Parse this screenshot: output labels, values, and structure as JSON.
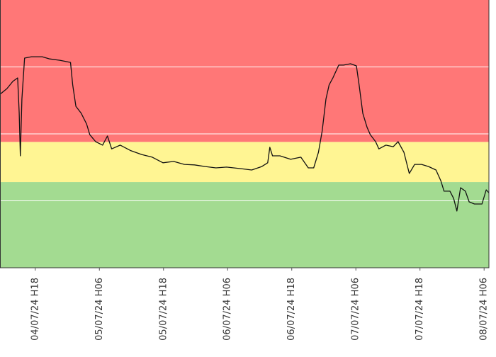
{
  "chart_data": {
    "type": "line",
    "xlim": [
      11.4,
      102.9
    ],
    "ylim": [
      0,
      100
    ],
    "xticks": [
      {
        "value": 18,
        "label": "04/07/24 H18"
      },
      {
        "value": 30,
        "label": "05/07/24 H06"
      },
      {
        "value": 42,
        "label": "05/07/24 H18"
      },
      {
        "value": 54,
        "label": "06/07/24 H06"
      },
      {
        "value": 66,
        "label": "06/07/24 H18"
      },
      {
        "value": 78,
        "label": "07/07/24 H06"
      },
      {
        "value": 90,
        "label": "07/07/24 H18"
      },
      {
        "value": 102,
        "label": "08/07/24 H06"
      }
    ],
    "gridlines": [
      25,
      50,
      75
    ],
    "bands": [
      {
        "from": 0,
        "to": 32,
        "color": "#a3db91"
      },
      {
        "from": 32,
        "to": 47,
        "color": "#fff593"
      },
      {
        "from": 47,
        "to": 100,
        "color": "#ff7777"
      }
    ],
    "series": [
      {
        "color": "#111111",
        "x": [
          11.4,
          12.7,
          13.8,
          14.7,
          15.0,
          15.2,
          15.5,
          16.0,
          17.3,
          19.3,
          20.7,
          22.6,
          24.6,
          25.0,
          25.6,
          26.6,
          27.6,
          28.2,
          29.3,
          30.6,
          31.5,
          32.3,
          33.9,
          35.9,
          37.9,
          39.9,
          41.9,
          43.9,
          45.9,
          47.8,
          49.8,
          51.8,
          53.8,
          56.5,
          58.5,
          60.4,
          61.5,
          61.9,
          62.4,
          63.8,
          65.8,
          67.7,
          69.1,
          70.1,
          71.0,
          71.7,
          72.4,
          73.0,
          73.7,
          74.8,
          75.7,
          77.0,
          78.1,
          78.6,
          79.3,
          80.1,
          80.7,
          81.7,
          82.3,
          83.6,
          85.0,
          85.9,
          87.0,
          88.0,
          89.0,
          90.3,
          91.6,
          93.0,
          93.9,
          94.5,
          95.6,
          96.3,
          96.9,
          97.6,
          98.5,
          99.2,
          100.2,
          101.6,
          102.4,
          102.9
        ],
        "values": [
          64.8,
          66.9,
          69.6,
          70.9,
          57.7,
          41.8,
          63.0,
          78.3,
          78.8,
          78.8,
          78.0,
          77.5,
          76.7,
          68.3,
          60.3,
          57.7,
          53.7,
          49.7,
          47.1,
          45.8,
          49.2,
          44.4,
          45.8,
          43.7,
          42.3,
          41.3,
          39.2,
          39.7,
          38.6,
          38.4,
          37.8,
          37.3,
          37.6,
          37.0,
          36.5,
          37.8,
          39.2,
          45.0,
          41.8,
          41.8,
          40.5,
          41.3,
          37.3,
          37.3,
          43.1,
          51.1,
          63.0,
          68.3,
          70.9,
          75.7,
          75.7,
          76.2,
          75.4,
          68.3,
          57.7,
          52.4,
          49.7,
          47.1,
          44.4,
          45.8,
          45.2,
          47.1,
          43.1,
          35.2,
          38.6,
          38.6,
          37.8,
          36.5,
          32.5,
          28.6,
          28.6,
          25.9,
          21.2,
          29.9,
          28.6,
          24.6,
          23.8,
          23.8,
          29.1,
          28.0
        ]
      }
    ]
  }
}
